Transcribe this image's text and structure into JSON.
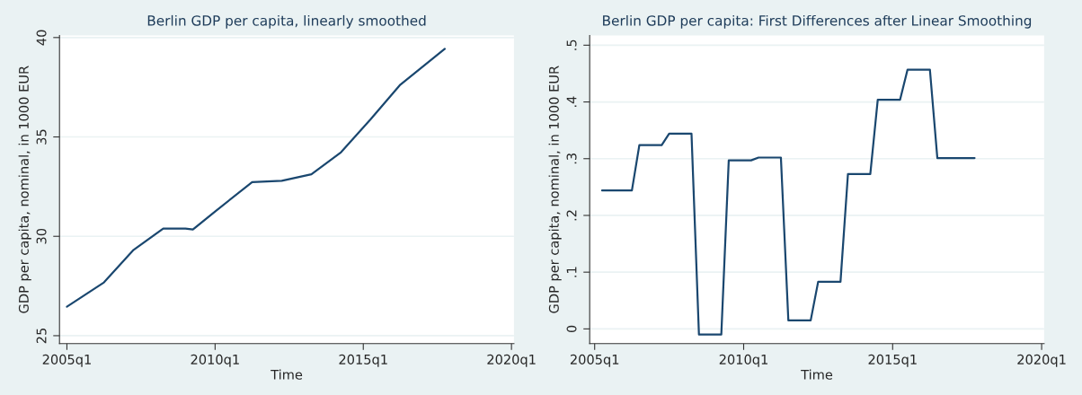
{
  "chart_data": [
    {
      "type": "line",
      "title": "Berlin GDP per capita, linearly smoothed",
      "xlabel": "Time",
      "ylabel": "GDP per capita, nominal, in 1000 EUR",
      "x": [
        "2005-01",
        "2006-04",
        "2007-04",
        "2008-04",
        "2009-01",
        "2009-04",
        "2010-01",
        "2011-04",
        "2012-04",
        "2013-04",
        "2014-04",
        "2015-04",
        "2016-04",
        "2017-10"
      ],
      "series": [
        {
          "color": "#1a476f",
          "values": [
            26.46,
            27.68,
            29.32,
            30.39,
            30.39,
            30.34,
            31.25,
            32.73,
            32.79,
            33.12,
            34.23,
            35.89,
            37.63,
            39.43
          ]
        }
      ],
      "xlim": [
        "2004-10",
        "2020-02"
      ],
      "ylim": [
        24.6,
        40.1
      ],
      "xticks": [
        {
          "value": "2005-01",
          "label": "2005q1"
        },
        {
          "value": "2010-01",
          "label": "2010q1"
        },
        {
          "value": "2015-01",
          "label": "2015q1"
        },
        {
          "value": "2020-01",
          "label": "2020q1"
        }
      ],
      "yticks": [
        25,
        30,
        35,
        40
      ],
      "grid": "y",
      "marker": "none",
      "line_style": "solid"
    },
    {
      "type": "line",
      "title": "Berlin GDP per capita: First Differences after Linear Smoothing",
      "xlabel": "Time",
      "ylabel": "GDP per capita, nominal, in 1000 EUR",
      "x": [
        "2005-04",
        "2006-04",
        "2006-07",
        "2007-04",
        "2007-07",
        "2008-04",
        "2008-07",
        "2009-04",
        "2009-07",
        "2010-04",
        "2010-07",
        "2011-04",
        "2011-07",
        "2012-04",
        "2012-07",
        "2013-04",
        "2013-07",
        "2014-04",
        "2014-07",
        "2015-04",
        "2015-07",
        "2016-04",
        "2016-07",
        "2017-10"
      ],
      "series": [
        {
          "color": "#1a476f",
          "values": [
            0.244,
            0.244,
            0.324,
            0.324,
            0.344,
            0.344,
            -0.01,
            -0.01,
            0.297,
            0.297,
            0.302,
            0.302,
            0.015,
            0.015,
            0.083,
            0.083,
            0.273,
            0.273,
            0.404,
            0.404,
            0.457,
            0.457,
            0.301,
            0.301
          ]
        }
      ],
      "xlim": [
        "2004-11",
        "2020-02"
      ],
      "ylim": [
        -0.026,
        0.517
      ],
      "xticks": [
        {
          "value": "2005-01",
          "label": "2005q1"
        },
        {
          "value": "2010-01",
          "label": "2010q1"
        },
        {
          "value": "2015-01",
          "label": "2015q1"
        },
        {
          "value": "2020-01",
          "label": "2020q1"
        }
      ],
      "yticks": [
        0,
        {
          "value": 0.1,
          "label": ".1"
        },
        {
          "value": 0.2,
          "label": ".2"
        },
        {
          "value": 0.3,
          "label": ".3"
        },
        {
          "value": 0.4,
          "label": ".4"
        },
        {
          "value": 0.5,
          "label": ".5"
        }
      ],
      "grid": "y",
      "marker": "none",
      "line_style": "solid"
    }
  ]
}
